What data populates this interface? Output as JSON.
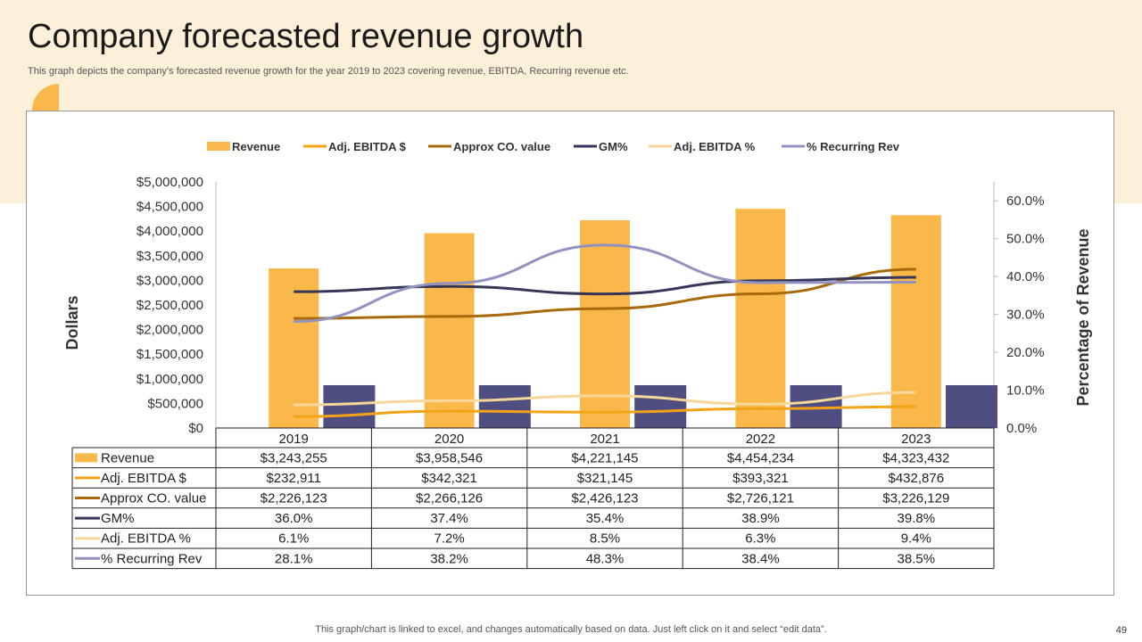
{
  "slide": {
    "title": "Company forecasted revenue growth",
    "subtitle": "This graph depicts the company’s forecasted revenue growth for the year 2019 to 2023 covering revenue, EBITDA,  Recurring revenue etc.",
    "footer": "This graph/chart is linked to excel,  and changes automatically based on data. Just left click on it and select “edit data”.",
    "page_number": "49"
  },
  "colors": {
    "band": "#fdf0d9",
    "deco_top": "#fbb84a",
    "deco_bottom": "#4f4e80"
  },
  "chart_data": {
    "type": "bar",
    "categories": [
      "2019",
      "2020",
      "2021",
      "2022",
      "2023"
    ],
    "ylabel": "Dollars",
    "y2label": "Percentage of Revenue",
    "ylim": [
      0,
      5000000
    ],
    "y2lim": [
      0,
      0.65
    ],
    "y_ticks": [
      "$5,000,000",
      "$4,500,000",
      "$4,000,000",
      "$3,500,000",
      "$3,000,000",
      "$2,500,000",
      "$2,000,000",
      "$1,500,000",
      "$1,000,000",
      "$500,000",
      "$0"
    ],
    "y2_ticks": [
      "60.0%",
      "50.0%",
      "40.0%",
      "30.0%",
      "20.0%",
      "10.0%",
      "0.0%"
    ],
    "legend_position": "top",
    "extra_bar": {
      "color": "#4f4e80",
      "values": [
        870000,
        870000,
        870000,
        870000,
        870000
      ],
      "offset_slot": "right"
    },
    "series": [
      {
        "name": "Revenue",
        "kind": "bar",
        "axis": "primary",
        "color": "#fbb84a",
        "values": [
          3243255,
          3958546,
          4221145,
          4454234,
          4323432
        ],
        "labels": [
          "$3,243,255",
          "$3,958,546",
          "$4,221,145",
          "$4,454,234",
          "$4,323,432"
        ]
      },
      {
        "name": "Adj. EBITDA $",
        "kind": "line",
        "axis": "primary",
        "color": "#f2a316",
        "values": [
          232911,
          342321,
          321145,
          393321,
          432876
        ],
        "labels": [
          "$232,911",
          "$342,321",
          "$321,145",
          "$393,321",
          "$432,876"
        ]
      },
      {
        "name": "Approx CO. value",
        "kind": "line",
        "axis": "primary",
        "color": "#a86a0a",
        "values": [
          2226123,
          2266126,
          2426123,
          2726121,
          3226129
        ],
        "labels": [
          "$2,226,123",
          "$2,266,126",
          "$2,426,123",
          "$2,726,121",
          "$3,226,129"
        ]
      },
      {
        "name": "GM%",
        "kind": "line",
        "axis": "secondary",
        "color": "#363658",
        "values": [
          0.36,
          0.374,
          0.354,
          0.389,
          0.398
        ],
        "labels": [
          "36.0%",
          "37.4%",
          "35.4%",
          "38.9%",
          "39.8%"
        ]
      },
      {
        "name": "Adj. EBITDA %",
        "kind": "line",
        "axis": "secondary",
        "color": "#f8d79a",
        "values": [
          0.061,
          0.072,
          0.085,
          0.063,
          0.094
        ],
        "labels": [
          "6.1%",
          "7.2%",
          "8.5%",
          "6.3%",
          "9.4%"
        ]
      },
      {
        "name": "% Recurring Rev",
        "kind": "line",
        "axis": "secondary",
        "color": "#9192bf",
        "values": [
          0.281,
          0.382,
          0.483,
          0.384,
          0.385
        ],
        "labels": [
          "28.1%",
          "38.2%",
          "48.3%",
          "38.4%",
          "38.5%"
        ]
      }
    ]
  }
}
